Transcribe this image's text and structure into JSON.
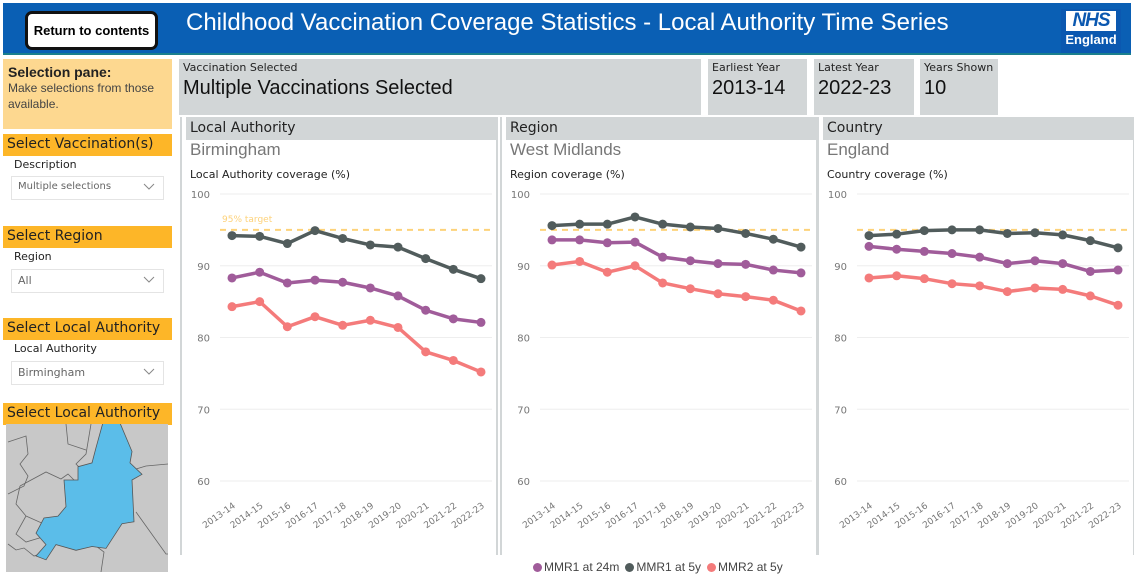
{
  "header": {
    "return_label": "Return to contents",
    "title": "Childhood Vaccination Coverage Statistics - Local Authority Time Series",
    "logo_top": "NHS",
    "logo_bottom": "England"
  },
  "sidebar": {
    "pane_title": "Selection pane:",
    "pane_text": "Make selections from those available.",
    "sections": [
      {
        "heading": "Select Vaccination(s)",
        "label": "Description",
        "value": "Multiple selections"
      },
      {
        "heading": "Select Region",
        "label": "Region",
        "value": "All"
      },
      {
        "heading": "Select Local Authority",
        "label": "Local Authority",
        "value": "Birmingham"
      }
    ],
    "map_heading": "Select Local Authority"
  },
  "cards": [
    {
      "label": "Vaccination Selected",
      "value": "Multiple Vaccinations Selected"
    },
    {
      "label": "Earliest Year",
      "value": "2013-14"
    },
    {
      "label": "Latest Year",
      "value": "2022-23"
    },
    {
      "label": "Years Shown",
      "value": "10"
    }
  ],
  "panels": [
    {
      "header": "Local Authority",
      "value": "Birmingham",
      "caption": "Local Authority coverage (%)"
    },
    {
      "header": "Region",
      "value": "West Midlands",
      "caption": "Region coverage (%)"
    },
    {
      "header": "Country",
      "value": "England",
      "caption": "Country coverage (%)"
    }
  ],
  "colors": {
    "header_bg": "#0a5fb4",
    "accent_orange": "#fdb628",
    "pane_bg": "#fdd890",
    "target": "#fdd27a",
    "map_selected": "#5bbde9"
  },
  "chart_data": [
    {
      "type": "line",
      "title": "Local Authority coverage (%)",
      "categories": [
        "2013-14",
        "2014-15",
        "2015-16",
        "2016-17",
        "2017-18",
        "2018-19",
        "2019-20",
        "2020-21",
        "2021-22",
        "2022-23"
      ],
      "ylim": [
        60,
        100
      ],
      "yticks": [
        60,
        70,
        80,
        90,
        100
      ],
      "target": {
        "value": 95,
        "label": "95% target"
      },
      "series": [
        {
          "name": "MMR1 at 24m",
          "color": "#a05c9a",
          "values": [
            88.3,
            89.1,
            87.6,
            88.0,
            87.7,
            86.9,
            85.8,
            83.8,
            82.6,
            82.1
          ]
        },
        {
          "name": "MMR1 at 5y",
          "color": "#515c5c",
          "values": [
            94.2,
            94.1,
            93.1,
            94.9,
            93.8,
            92.9,
            92.6,
            91.0,
            89.5,
            88.2
          ]
        },
        {
          "name": "MMR2 at 5y",
          "color": "#f47b7b",
          "values": [
            84.3,
            85.0,
            81.5,
            82.9,
            81.7,
            82.4,
            81.4,
            78.0,
            76.8,
            75.2
          ]
        }
      ]
    },
    {
      "type": "line",
      "title": "Region coverage (%)",
      "categories": [
        "2013-14",
        "2014-15",
        "2015-16",
        "2016-17",
        "2017-18",
        "2018-19",
        "2019-20",
        "2020-21",
        "2021-22",
        "2022-23"
      ],
      "ylim": [
        60,
        100
      ],
      "yticks": [
        60,
        70,
        80,
        90,
        100
      ],
      "target": {
        "value": 95,
        "label": ""
      },
      "series": [
        {
          "name": "MMR1 at 24m",
          "color": "#a05c9a",
          "values": [
            93.6,
            93.6,
            93.2,
            93.3,
            91.2,
            90.7,
            90.3,
            90.2,
            89.4,
            89.0
          ]
        },
        {
          "name": "MMR1 at 5y",
          "color": "#515c5c",
          "values": [
            95.6,
            95.8,
            95.8,
            96.8,
            95.8,
            95.4,
            95.2,
            94.5,
            93.7,
            92.6
          ]
        },
        {
          "name": "MMR2 at 5y",
          "color": "#f47b7b",
          "values": [
            90.1,
            90.6,
            89.1,
            90.0,
            87.6,
            86.8,
            86.1,
            85.7,
            85.2,
            83.7
          ]
        }
      ]
    },
    {
      "type": "line",
      "title": "Country coverage (%)",
      "categories": [
        "2013-14",
        "2014-15",
        "2015-16",
        "2016-17",
        "2017-18",
        "2018-19",
        "2019-20",
        "2020-21",
        "2021-22",
        "2022-23"
      ],
      "ylim": [
        60,
        100
      ],
      "yticks": [
        60,
        70,
        80,
        90,
        100
      ],
      "target": {
        "value": 95,
        "label": ""
      },
      "series": [
        {
          "name": "MMR1 at 24m",
          "color": "#a05c9a",
          "values": [
            92.7,
            92.3,
            92.0,
            91.7,
            91.2,
            90.3,
            90.7,
            90.3,
            89.2,
            89.4
          ]
        },
        {
          "name": "MMR1 at 5y",
          "color": "#515c5c",
          "values": [
            94.2,
            94.4,
            94.9,
            95.0,
            95.0,
            94.5,
            94.6,
            94.3,
            93.5,
            92.5
          ]
        },
        {
          "name": "MMR2 at 5y",
          "color": "#f47b7b",
          "values": [
            88.3,
            88.6,
            88.2,
            87.5,
            87.2,
            86.4,
            86.9,
            86.7,
            85.8,
            84.5
          ]
        }
      ]
    }
  ],
  "legend": [
    {
      "name": "MMR1 at 24m",
      "color": "#a05c9a"
    },
    {
      "name": "MMR1 at 5y",
      "color": "#515c5c"
    },
    {
      "name": "MMR2 at 5y",
      "color": "#f47b7b"
    }
  ]
}
